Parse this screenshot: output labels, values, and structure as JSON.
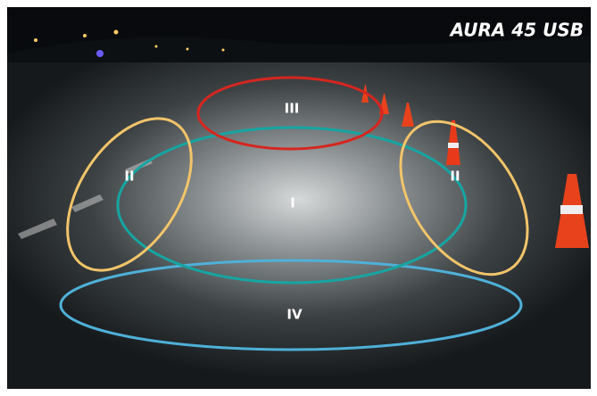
{
  "title": "AURA 45 USB",
  "zones": [
    {
      "label": "III"
    },
    {
      "label": "II"
    },
    {
      "label": "I"
    },
    {
      "label": "II"
    },
    {
      "label": "IV"
    }
  ]
}
